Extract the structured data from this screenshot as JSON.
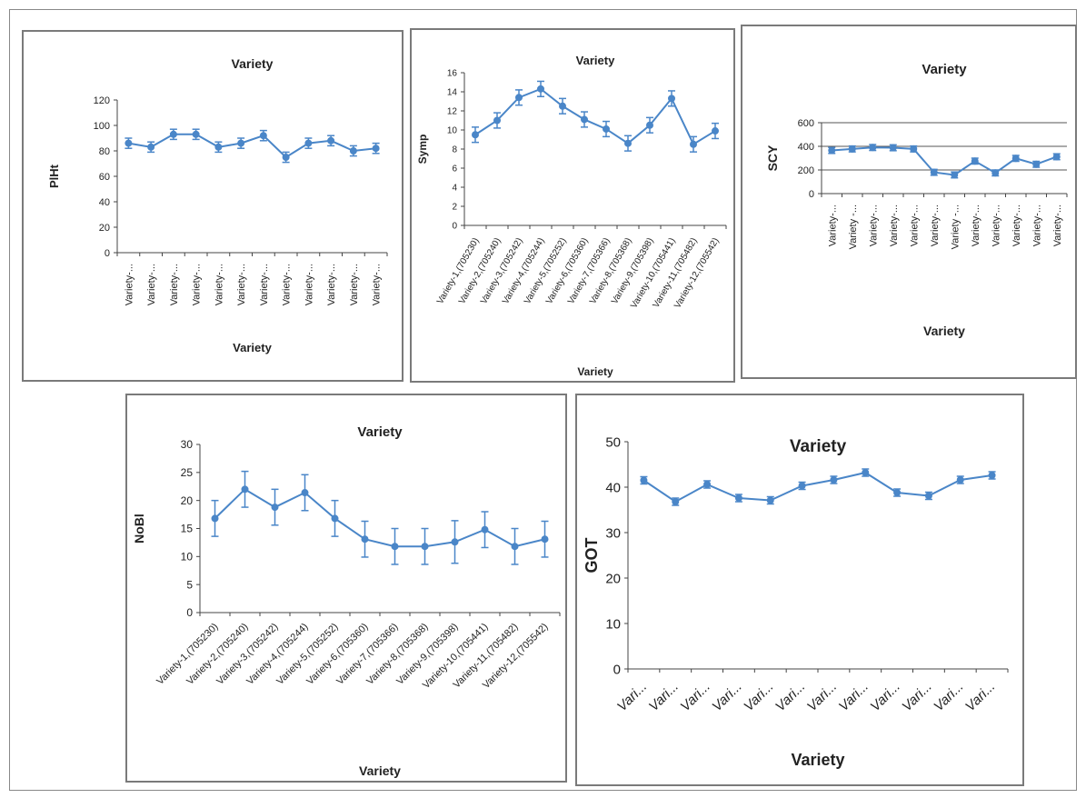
{
  "line_color": "#4a86c8",
  "chart_data": [
    {
      "type": "line",
      "title": "Variety",
      "xlabel": "Variety",
      "ylabel": "PlHt",
      "ylim": [
        0,
        120
      ],
      "yticks": [
        "0",
        "20",
        "40",
        "60",
        "80",
        "100",
        "120"
      ],
      "categories": [
        "Variety-...",
        "Variety-...",
        "Variety-...",
        "Variety-...",
        "Variety-...",
        "Variety-...",
        "Variety-...",
        "Variety-...",
        "Variety-...",
        "Variety-...",
        "Variety-...",
        "Variety-..."
      ],
      "values": [
        86,
        83,
        93,
        93,
        83,
        86,
        92,
        75,
        86,
        88,
        80,
        82
      ],
      "errors": [
        4,
        4,
        4,
        4,
        4,
        4,
        4,
        4,
        4,
        4,
        4,
        4
      ],
      "grid": false
    },
    {
      "type": "line",
      "title": "Variety",
      "xlabel": "Variety",
      "ylabel": "Symp",
      "ylim": [
        0,
        16
      ],
      "yticks": [
        "0",
        "2",
        "4",
        "6",
        "8",
        "10",
        "12",
        "14",
        "16"
      ],
      "categories": [
        "Variety-1,(705230)",
        "Variety-2,(705240)",
        "Variety-3,(705242)",
        "Variety-4,(705244)",
        "Variety-5,(705252)",
        "Variety-6,(705360)",
        "Variety-7,(705366)",
        "Variety-8,(705368)",
        "Variety-9,(705398)",
        "Variety-10,(705441)",
        "Variety-11,(705482)",
        "Variety-12,(705542)"
      ],
      "values": [
        9.5,
        11,
        13.4,
        14.3,
        12.5,
        11.1,
        10.1,
        8.6,
        10.5,
        13.3,
        8.5,
        9.9
      ],
      "errors": [
        0.8,
        0.8,
        0.8,
        0.8,
        0.8,
        0.8,
        0.8,
        0.8,
        0.8,
        0.8,
        0.8,
        0.8
      ],
      "grid": false
    },
    {
      "type": "line",
      "title": "Variety",
      "xlabel": "Variety",
      "ylabel": "SCY",
      "ylim": [
        0,
        600
      ],
      "yticks": [
        "0",
        "200",
        "400",
        "600"
      ],
      "categories": [
        "Variety-...",
        "Variety -...",
        "Variety-...",
        "Variety-...",
        "Variety-...",
        "Variety-...",
        "Variety -...",
        "Variety-...",
        "Variety-...",
        "Variety-...",
        "Variety-...",
        "Variety-..."
      ],
      "values": [
        365,
        378,
        390,
        388,
        378,
        180,
        158,
        275,
        175,
        298,
        248,
        312
      ],
      "errors": [
        25,
        25,
        25,
        25,
        25,
        25,
        25,
        25,
        25,
        25,
        25,
        25
      ],
      "grid": true
    },
    {
      "type": "line",
      "title": "Variety",
      "xlabel": "Variety",
      "ylabel": "NoBl",
      "ylim": [
        0,
        30
      ],
      "yticks": [
        "0",
        "5",
        "10",
        "15",
        "20",
        "25",
        "30"
      ],
      "categories": [
        "Variety-1,(705230)",
        "Variety-2,(705240)",
        "Variety-3,(705242)",
        "Variety-4,(705244)",
        "Variety-5,(705252)",
        "Variety-6,(705360)",
        "Variety-7,(705366)",
        "Variety-8,(705368)",
        "Variety-9,(705398)",
        "Variety-10,(705441)",
        "Variety-11,(705482)",
        "Variety-12,(705542)"
      ],
      "values": [
        16.8,
        22,
        18.8,
        21.4,
        16.8,
        13.1,
        11.8,
        11.8,
        12.6,
        14.8,
        11.8,
        13.1
      ],
      "errors": [
        3.2,
        3.2,
        3.2,
        3.2,
        3.2,
        3.2,
        3.2,
        3.2,
        3.8,
        3.2,
        3.2,
        3.2
      ],
      "grid": false
    },
    {
      "type": "line",
      "title": "Variety",
      "xlabel": "Variety",
      "ylabel": "GOT",
      "ylim": [
        0,
        50
      ],
      "yticks": [
        "0",
        "10",
        "20",
        "30",
        "40",
        "50"
      ],
      "categories": [
        "Vari...",
        "Vari...",
        "Vari...",
        "Vari...",
        "Vari...",
        "Vari...",
        "Vari...",
        "Vari...",
        "Vari...",
        "Vari...",
        "Vari...",
        "Vari..."
      ],
      "values": [
        41.5,
        36.8,
        40.6,
        37.6,
        37.1,
        40.3,
        41.6,
        43.2,
        38.8,
        38.1,
        41.6,
        42.6
      ],
      "errors": [
        0.8,
        0.8,
        0.8,
        0.8,
        0.8,
        0.8,
        0.8,
        0.8,
        0.8,
        0.8,
        0.8,
        0.8
      ],
      "grid": false
    }
  ]
}
